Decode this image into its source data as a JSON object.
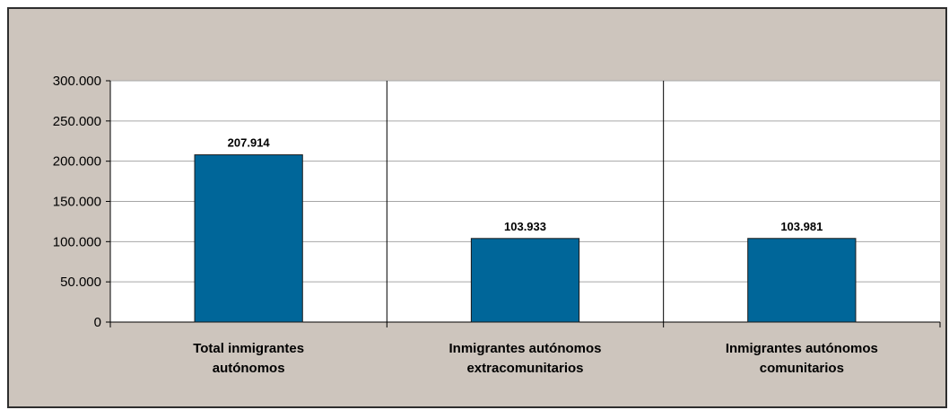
{
  "chart_data": {
    "type": "bar",
    "title": "",
    "xlabel": "",
    "ylabel": "",
    "categories": [
      [
        "Total inmigrantes",
        "autónomos"
      ],
      [
        "Inmigrantes autónomos",
        "extracomunitarios"
      ],
      [
        "Inmigrantes autónomos",
        "comunitarios"
      ]
    ],
    "values": [
      207914,
      103933,
      103981
    ],
    "data_labels": [
      "207.914",
      "103.933",
      "103.981"
    ],
    "ylim": [
      0,
      300000
    ],
    "yticks": [
      0,
      50000,
      100000,
      150000,
      200000,
      250000,
      300000
    ],
    "ytick_labels": [
      "0",
      "50.000",
      "100.000",
      "150.000",
      "200.000",
      "250.000",
      "300.000"
    ],
    "grid": true,
    "legend": "none",
    "colors": {
      "bar": "#006699",
      "bar_edge": "#1a1a1a",
      "plot_bg": "#ffffff",
      "chart_bg": "#cdc5bd",
      "grid": "#a6a6a6"
    }
  }
}
